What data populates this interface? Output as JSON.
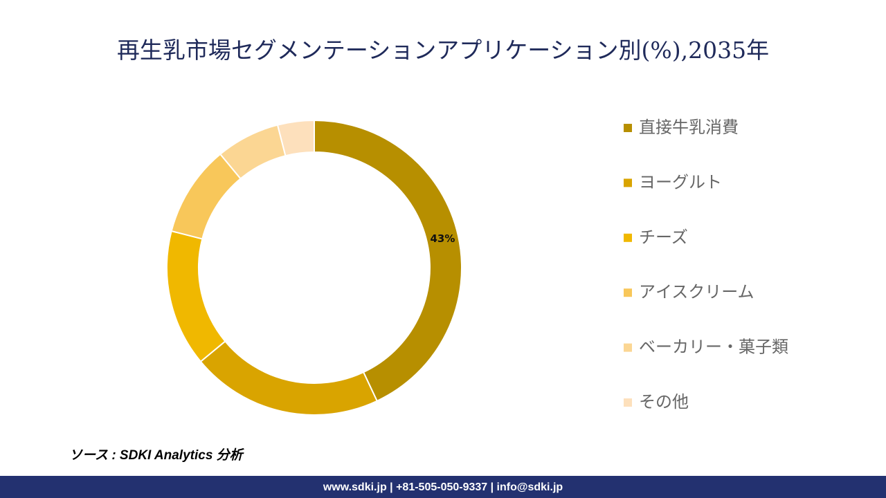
{
  "chart_data": {
    "type": "donut",
    "title": "再生乳市場セグメンテーションアプリケーション別(%),2035年",
    "categories": [
      "直接牛乳消費",
      "ヨーグルト",
      "チーズ",
      "アイスクリーム",
      "ベーカリー・菓子類",
      "その他"
    ],
    "values": [
      43,
      21,
      15,
      10,
      7,
      4
    ],
    "value_labels": [
      "43%",
      null,
      null,
      null,
      null,
      null
    ],
    "colors": [
      "#b78f00",
      "#d9a400",
      "#f0b800",
      "#f8c75a",
      "#fbd693",
      "#fde0bc"
    ],
    "legend": "right"
  },
  "source": "ソース : SDKI Analytics 分析",
  "footer": "www.sdki.jp | +81-505-050-9337 | info@sdki.jp"
}
